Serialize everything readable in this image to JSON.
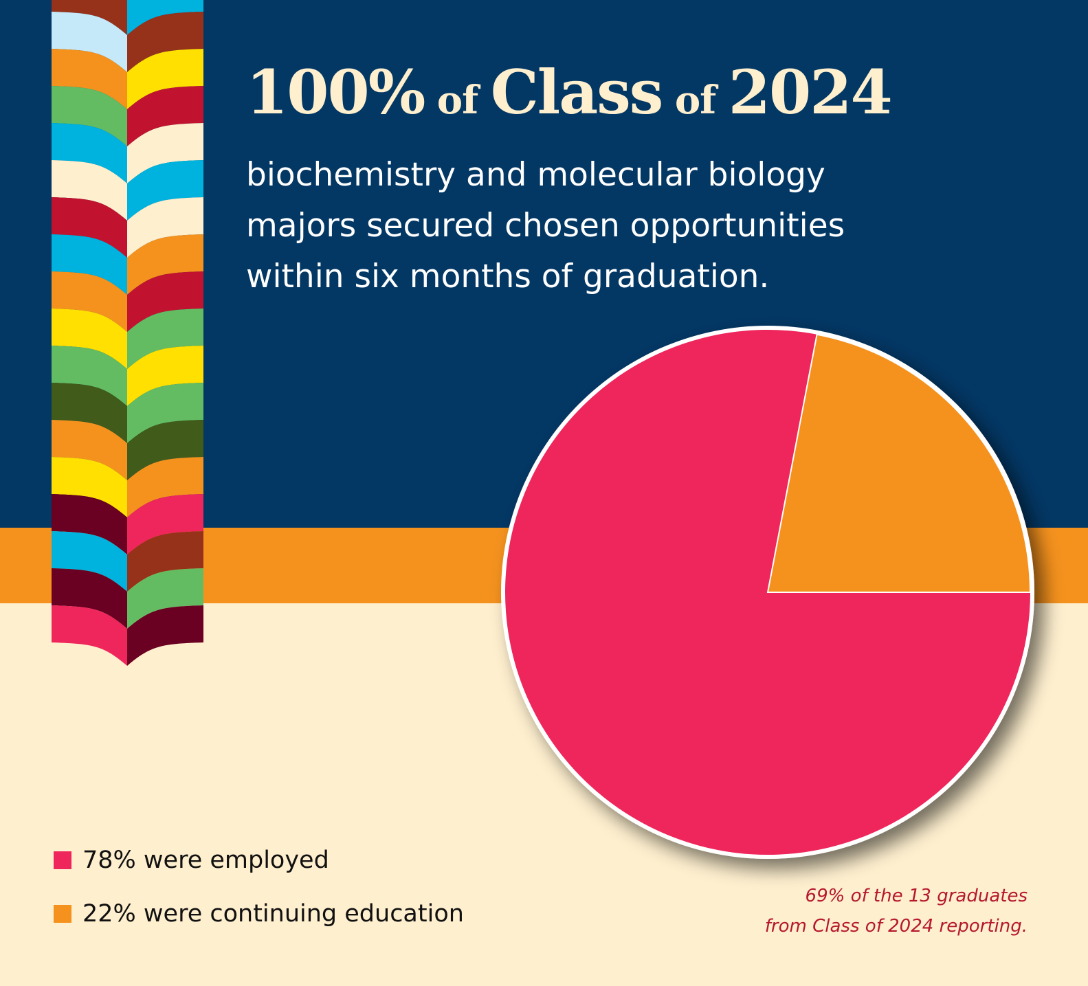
{
  "colors": {
    "navy": "#033764",
    "orange_band": "#F5921E",
    "cream": "#FEEFCE",
    "pink": "#EE265C",
    "orange": "#F5921E",
    "title_text": "#FEEFCE",
    "subtitle_text": "#FFFFFF",
    "footnote_text": "#B5182E"
  },
  "header": {
    "title_parts": [
      {
        "text": "100%",
        "size": "big"
      },
      {
        "text": " of ",
        "size": "small"
      },
      {
        "text": "Class",
        "size": "big"
      },
      {
        "text": " of ",
        "size": "small"
      },
      {
        "text": "2024",
        "size": "big"
      }
    ],
    "subtitle_lines": [
      "biochemistry and molecular biology",
      "majors secured chosen opportunities",
      "within six months of graduation."
    ]
  },
  "ribbon": {
    "left_column": [
      "#96311A",
      "#C5E9F8",
      "#F5921E",
      "#64BC62",
      "#00B3DE",
      "#FEEFCE",
      "#C1132F",
      "#00B3DE",
      "#F5921E",
      "#FFE000",
      "#64BC62",
      "#415B1A",
      "#F5921E",
      "#FFE000",
      "#6A0022",
      "#00B3DE",
      "#6A0022",
      "#EE265C"
    ],
    "right_column": [
      "#00B3DE",
      "#96311A",
      "#FFE000",
      "#C1132F",
      "#FEEFCE",
      "#00B3DE",
      "#FEEFCE",
      "#F5921E",
      "#C1132F",
      "#64BC62",
      "#FFE000",
      "#64BC62",
      "#415B1A",
      "#F5921E",
      "#EE265C",
      "#96311A",
      "#64BC62",
      "#6A0022"
    ]
  },
  "legend": {
    "items": [
      {
        "label": "78% were employed",
        "color": "#EE265C"
      },
      {
        "label": "22% were continuing education",
        "color": "#F5921E"
      }
    ]
  },
  "footnote": {
    "lines": [
      "69% of the 13 graduates",
      "from Class of 2024 reporting."
    ]
  },
  "chart_data": {
    "type": "pie",
    "title": "100% of Class of 2024",
    "subtitle": "biochemistry and molecular biology majors secured chosen opportunities within six months of graduation.",
    "categories": [
      "Employed",
      "Continuing education"
    ],
    "values": [
      78,
      22
    ],
    "units": "%",
    "colors": [
      "#EE265C",
      "#F5921E"
    ],
    "legend": [
      "78% were employed",
      "22% were continuing education"
    ],
    "legend_position": "bottom-left",
    "annotations": [
      "69% of the 13 graduates from Class of 2024 reporting."
    ]
  }
}
